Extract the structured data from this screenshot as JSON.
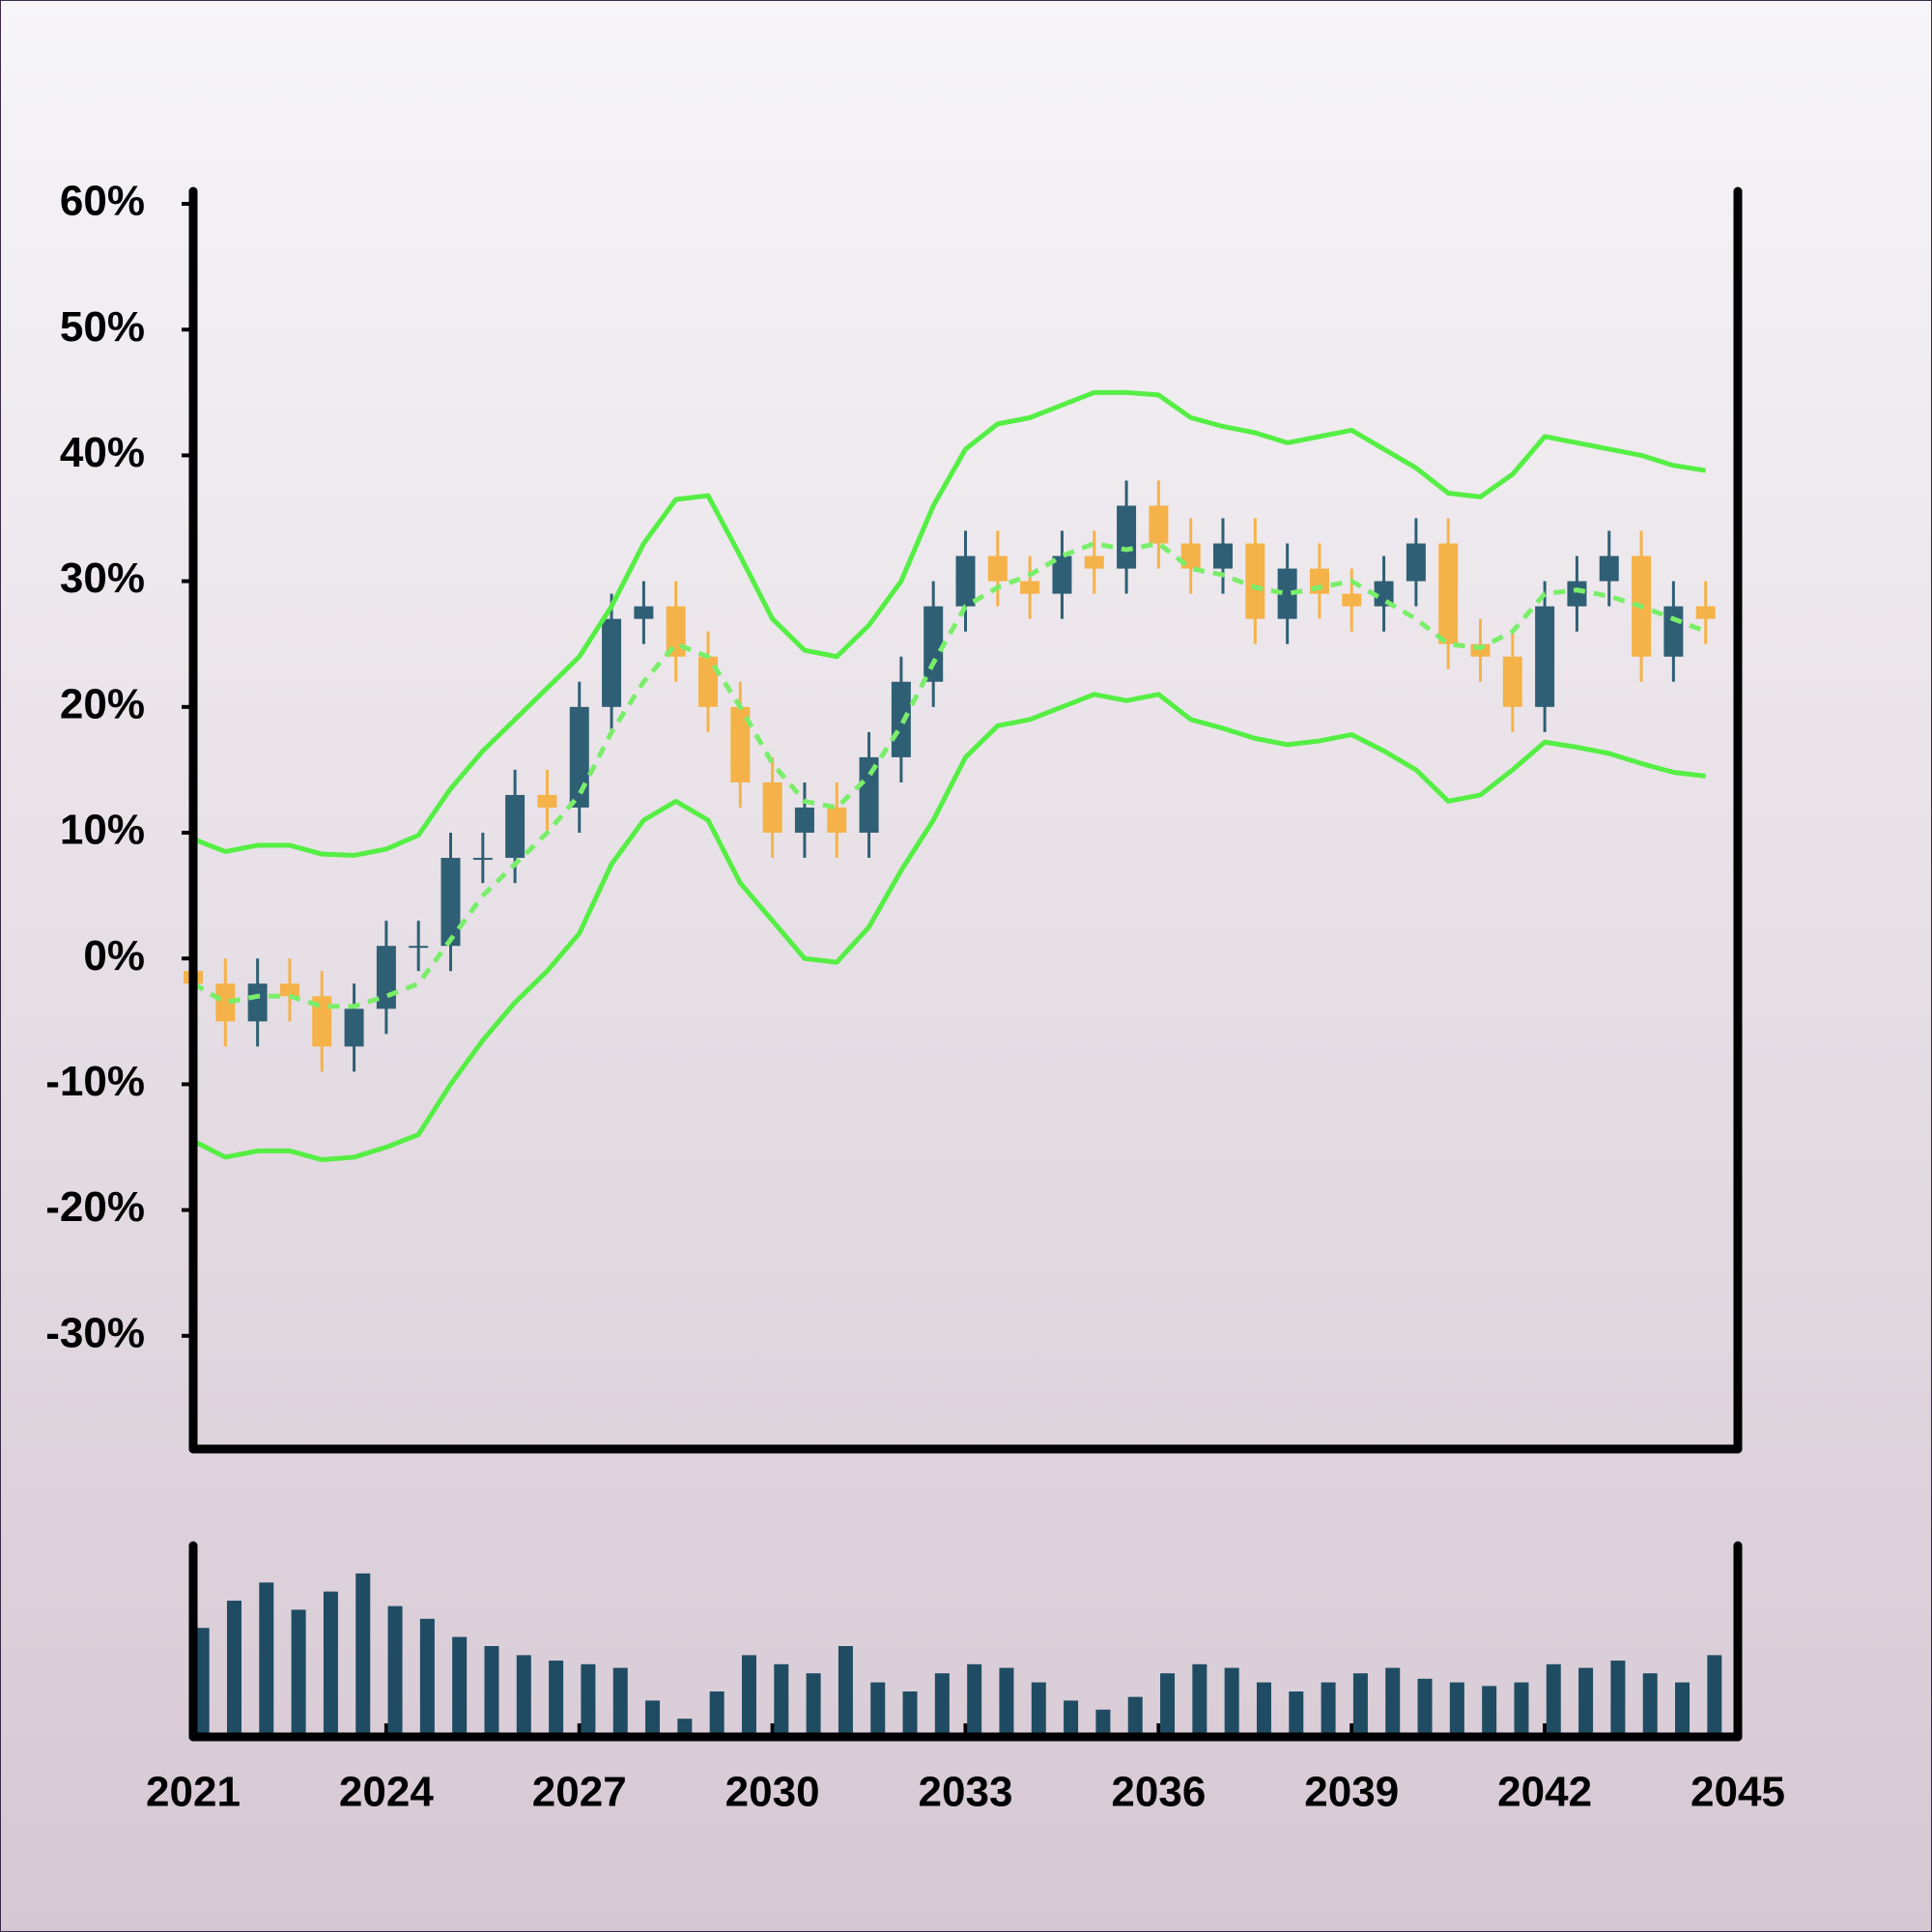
{
  "chart_data": {
    "type": "candlestick",
    "x": [
      2021,
      2021.5,
      2022,
      2022.5,
      2023,
      2023.5,
      2024,
      2024.5,
      2025,
      2025.5,
      2026,
      2026.5,
      2027,
      2027.5,
      2028,
      2028.5,
      2029,
      2029.5,
      2030,
      2030.5,
      2031,
      2031.5,
      2032,
      2032.5,
      2033,
      2033.5,
      2034,
      2034.5,
      2035,
      2035.5,
      2036,
      2036.5,
      2037,
      2037.5,
      2038,
      2038.5,
      2039,
      2039.5,
      2040,
      2040.5,
      2041,
      2041.5,
      2042,
      2042.5,
      2043,
      2043.5,
      2044,
      2044.5
    ],
    "open": [
      -1,
      -2,
      -5,
      -2,
      -3,
      -7,
      -4,
      1,
      1,
      8,
      8,
      13,
      12,
      20,
      27,
      28,
      24,
      20,
      14,
      10,
      12,
      10,
      16,
      22,
      28,
      32,
      30,
      29,
      32,
      31,
      36,
      33,
      31,
      33,
      27,
      31,
      29,
      28,
      30,
      33,
      25,
      24,
      20,
      28,
      30,
      32,
      24,
      28
    ],
    "high": [
      1,
      0,
      0,
      0,
      -1,
      -2,
      3,
      3,
      10,
      10,
      15,
      15,
      22,
      29,
      30,
      30,
      26,
      22,
      16,
      14,
      14,
      18,
      24,
      30,
      34,
      34,
      32,
      34,
      34,
      38,
      38,
      35,
      35,
      35,
      33,
      33,
      31,
      32,
      35,
      35,
      27,
      26,
      30,
      32,
      34,
      34,
      30,
      30
    ],
    "low": [
      -4,
      -7,
      -7,
      -5,
      -9,
      -9,
      -6,
      -1,
      -1,
      6,
      6,
      10,
      10,
      18,
      25,
      22,
      18,
      12,
      8,
      8,
      8,
      8,
      14,
      20,
      26,
      28,
      27,
      27,
      29,
      29,
      31,
      29,
      29,
      25,
      25,
      27,
      26,
      26,
      28,
      23,
      22,
      18,
      18,
      26,
      28,
      22,
      22,
      25
    ],
    "close": [
      -2,
      -5,
      -2,
      -3,
      -7,
      -4,
      1,
      1,
      8,
      8,
      13,
      12,
      20,
      27,
      28,
      24,
      20,
      14,
      10,
      12,
      10,
      16,
      22,
      28,
      32,
      30,
      29,
      32,
      31,
      36,
      33,
      31,
      33,
      27,
      31,
      29,
      28,
      30,
      33,
      25,
      24,
      20,
      28,
      30,
      32,
      24,
      28,
      27
    ],
    "up_color": "#2f5f74",
    "down_color": "#f5b248",
    "bands": {
      "color": "#55ee44",
      "middle_color": "#7aee6a",
      "upper": [
        9.5,
        8.5,
        9,
        9,
        8.3,
        8.2,
        8.7,
        9.8,
        13.5,
        16.5,
        19,
        21.5,
        24,
        28,
        33,
        36.5,
        36.8,
        32,
        27,
        24.5,
        24,
        26.5,
        30,
        36,
        40.5,
        42.5,
        43,
        44,
        45,
        45,
        44.8,
        43,
        42.3,
        41.8,
        41,
        41.5,
        42,
        40.5,
        39,
        37,
        36.7,
        38.5,
        41.5,
        41,
        40.5,
        40,
        39.2,
        38.8
      ],
      "middle": [
        -2,
        -3.5,
        -3,
        -3,
        -3.8,
        -3.8,
        -3,
        -2,
        1.5,
        5,
        7.5,
        10,
        13,
        18,
        22,
        25,
        24,
        20,
        15.5,
        12.5,
        12,
        14.5,
        18.5,
        23.5,
        28,
        29.5,
        30.5,
        32,
        33,
        32.5,
        33,
        31,
        30.5,
        29.5,
        29,
        29.5,
        30,
        28.5,
        27,
        25,
        24.7,
        26,
        29,
        29.3,
        28.8,
        28,
        27,
        26
      ],
      "lower": [
        -14.5,
        -15.8,
        -15.3,
        -15.3,
        -16,
        -15.8,
        -15,
        -14,
        -10,
        -6.5,
        -3.5,
        -1,
        2,
        7.5,
        11,
        12.5,
        11,
        6,
        3,
        0,
        -0.3,
        2.5,
        7,
        11,
        16,
        18.5,
        19,
        20,
        21,
        20.5,
        21,
        19,
        18.3,
        17.5,
        17,
        17.3,
        17.8,
        16.5,
        15,
        12.5,
        13,
        15,
        17.2,
        16.8,
        16.3,
        15.5,
        14.8,
        14.5
      ]
    },
    "volume": {
      "color": "#1f4c63",
      "ylim": [
        0,
        100
      ],
      "values": [
        60,
        75,
        85,
        70,
        80,
        90,
        72,
        65,
        55,
        50,
        45,
        42,
        40,
        38,
        20,
        10,
        25,
        45,
        40,
        35,
        50,
        30,
        25,
        35,
        40,
        38,
        30,
        20,
        15,
        22,
        35,
        40,
        38,
        30,
        25,
        30,
        35,
        38,
        32,
        30,
        28,
        30,
        40,
        38,
        42,
        35,
        30,
        45
      ]
    },
    "xlim": [
      2021,
      2045
    ],
    "xticks": [
      2021,
      2024,
      2027,
      2030,
      2033,
      2036,
      2039,
      2042,
      2045
    ],
    "ylim": [
      -39,
      61
    ],
    "yticks": [
      {
        "value": 60,
        "label": "60%"
      },
      {
        "value": 50,
        "label": "50%"
      },
      {
        "value": 40,
        "label": "40%"
      },
      {
        "value": 30,
        "label": "30%"
      },
      {
        "value": 20,
        "label": "20%"
      },
      {
        "value": 10,
        "label": "10%"
      },
      {
        "value": 0,
        "label": "0%"
      },
      {
        "value": -10,
        "label": "-10%"
      },
      {
        "value": -20,
        "label": "-20%"
      },
      {
        "value": -30,
        "label": "-30%"
      }
    ]
  }
}
